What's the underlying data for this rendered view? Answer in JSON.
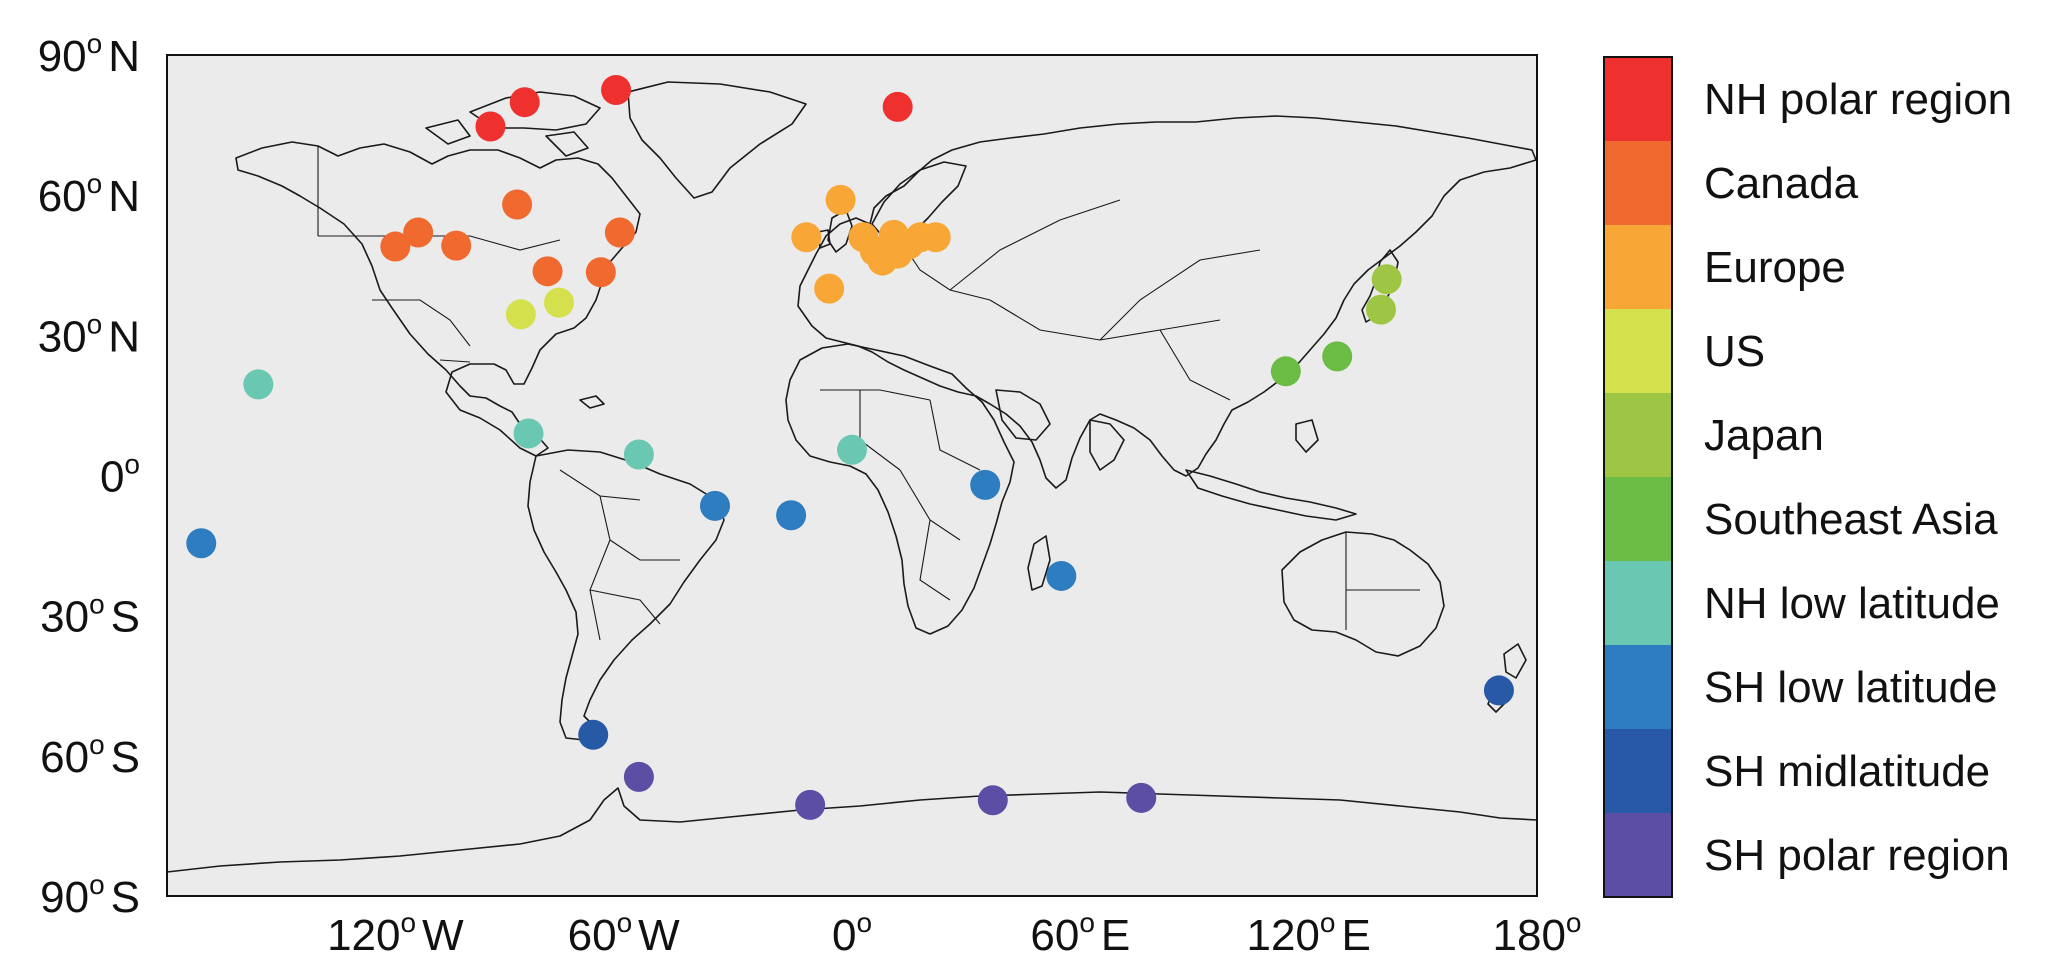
{
  "map": {
    "x_ticks": [
      {
        "value": -120,
        "num": "120",
        "dir": "W"
      },
      {
        "value": -60,
        "num": "60",
        "dir": "W"
      },
      {
        "value": 0,
        "num": "0",
        "dir": ""
      },
      {
        "value": 60,
        "num": "60",
        "dir": "E"
      },
      {
        "value": 120,
        "num": "120",
        "dir": "E"
      },
      {
        "value": 180,
        "num": "180",
        "dir": ""
      }
    ],
    "y_ticks": [
      {
        "value": 90,
        "num": "90",
        "dir": "N"
      },
      {
        "value": 60,
        "num": "60",
        "dir": "N"
      },
      {
        "value": 30,
        "num": "30",
        "dir": "N"
      },
      {
        "value": 0,
        "num": "0",
        "dir": ""
      },
      {
        "value": -30,
        "num": "30",
        "dir": "S"
      },
      {
        "value": -60,
        "num": "60",
        "dir": "S"
      },
      {
        "value": -90,
        "num": "90",
        "dir": "S"
      }
    ],
    "degree_symbol": "o",
    "xlim": [
      -180,
      180
    ],
    "ylim": [
      -90,
      90
    ],
    "background_color": "#ebebeb",
    "legend": [
      {
        "label": "NH polar region",
        "color": "#ee302f"
      },
      {
        "label": "Canada",
        "color": "#f06a30"
      },
      {
        "label": "Europe",
        "color": "#f8a736"
      },
      {
        "label": "US",
        "color": "#d4e04c"
      },
      {
        "label": "Japan",
        "color": "#9ec544"
      },
      {
        "label": "Southeast Asia",
        "color": "#6bbc44"
      },
      {
        "label": "NH low latitude",
        "color": "#6ac8b2"
      },
      {
        "label": "SH low latitude",
        "color": "#2f7dc1"
      },
      {
        "label": "SH midlatitude",
        "color": "#2859a6"
      },
      {
        "label": "SH polar region",
        "color": "#5c4ea4"
      }
    ],
    "stations": [
      {
        "region": 0,
        "lon": -95,
        "lat": 74.7
      },
      {
        "region": 0,
        "lon": -86,
        "lat": 79.9
      },
      {
        "region": 0,
        "lon": -62,
        "lat": 82.5
      },
      {
        "region": 0,
        "lon": 12,
        "lat": 78.9
      },
      {
        "region": 1,
        "lon": -120,
        "lat": 49
      },
      {
        "region": 1,
        "lon": -114,
        "lat": 52
      },
      {
        "region": 1,
        "lon": -104,
        "lat": 49.2
      },
      {
        "region": 1,
        "lon": -88,
        "lat": 58
      },
      {
        "region": 1,
        "lon": -80,
        "lat": 43.7
      },
      {
        "region": 1,
        "lon": -66,
        "lat": 43.5
      },
      {
        "region": 1,
        "lon": -61,
        "lat": 52
      },
      {
        "region": 2,
        "lon": -12,
        "lat": 51
      },
      {
        "region": 2,
        "lon": -3,
        "lat": 59
      },
      {
        "region": 2,
        "lon": -6,
        "lat": 40
      },
      {
        "region": 2,
        "lon": 3,
        "lat": 51
      },
      {
        "region": 2,
        "lon": 6,
        "lat": 48
      },
      {
        "region": 2,
        "lon": 8,
        "lat": 46
      },
      {
        "region": 2,
        "lon": 12,
        "lat": 47.5
      },
      {
        "region": 2,
        "lon": 15,
        "lat": 49.5
      },
      {
        "region": 2,
        "lon": 18,
        "lat": 51
      },
      {
        "region": 2,
        "lon": 22,
        "lat": 51
      },
      {
        "region": 2,
        "lon": 11,
        "lat": 51.5
      },
      {
        "region": 3,
        "lon": -87,
        "lat": 34.5
      },
      {
        "region": 3,
        "lon": -77,
        "lat": 37
      },
      {
        "region": 4,
        "lon": 139,
        "lat": 35.5
      },
      {
        "region": 4,
        "lon": 140.5,
        "lat": 42
      },
      {
        "region": 5,
        "lon": 114,
        "lat": 22.3
      },
      {
        "region": 5,
        "lon": 127.5,
        "lat": 25.5
      },
      {
        "region": 6,
        "lon": -156,
        "lat": 19.5
      },
      {
        "region": 6,
        "lon": -85,
        "lat": 9
      },
      {
        "region": 6,
        "lon": -56,
        "lat": 4.5
      },
      {
        "region": 6,
        "lon": 0,
        "lat": 5.5
      },
      {
        "region": 7,
        "lon": -171,
        "lat": -14.5
      },
      {
        "region": 7,
        "lon": -36,
        "lat": -6.5
      },
      {
        "region": 7,
        "lon": -16,
        "lat": -8.5
      },
      {
        "region": 7,
        "lon": 35,
        "lat": -2
      },
      {
        "region": 7,
        "lon": 55,
        "lat": -21.5
      },
      {
        "region": 8,
        "lon": 170,
        "lat": -46
      },
      {
        "region": 8,
        "lon": -68,
        "lat": -55.5
      },
      {
        "region": 9,
        "lon": -56,
        "lat": -64.5
      },
      {
        "region": 9,
        "lon": -11,
        "lat": -70.5
      },
      {
        "region": 9,
        "lon": 37,
        "lat": -69.5
      },
      {
        "region": 9,
        "lon": 76,
        "lat": -69
      }
    ]
  }
}
